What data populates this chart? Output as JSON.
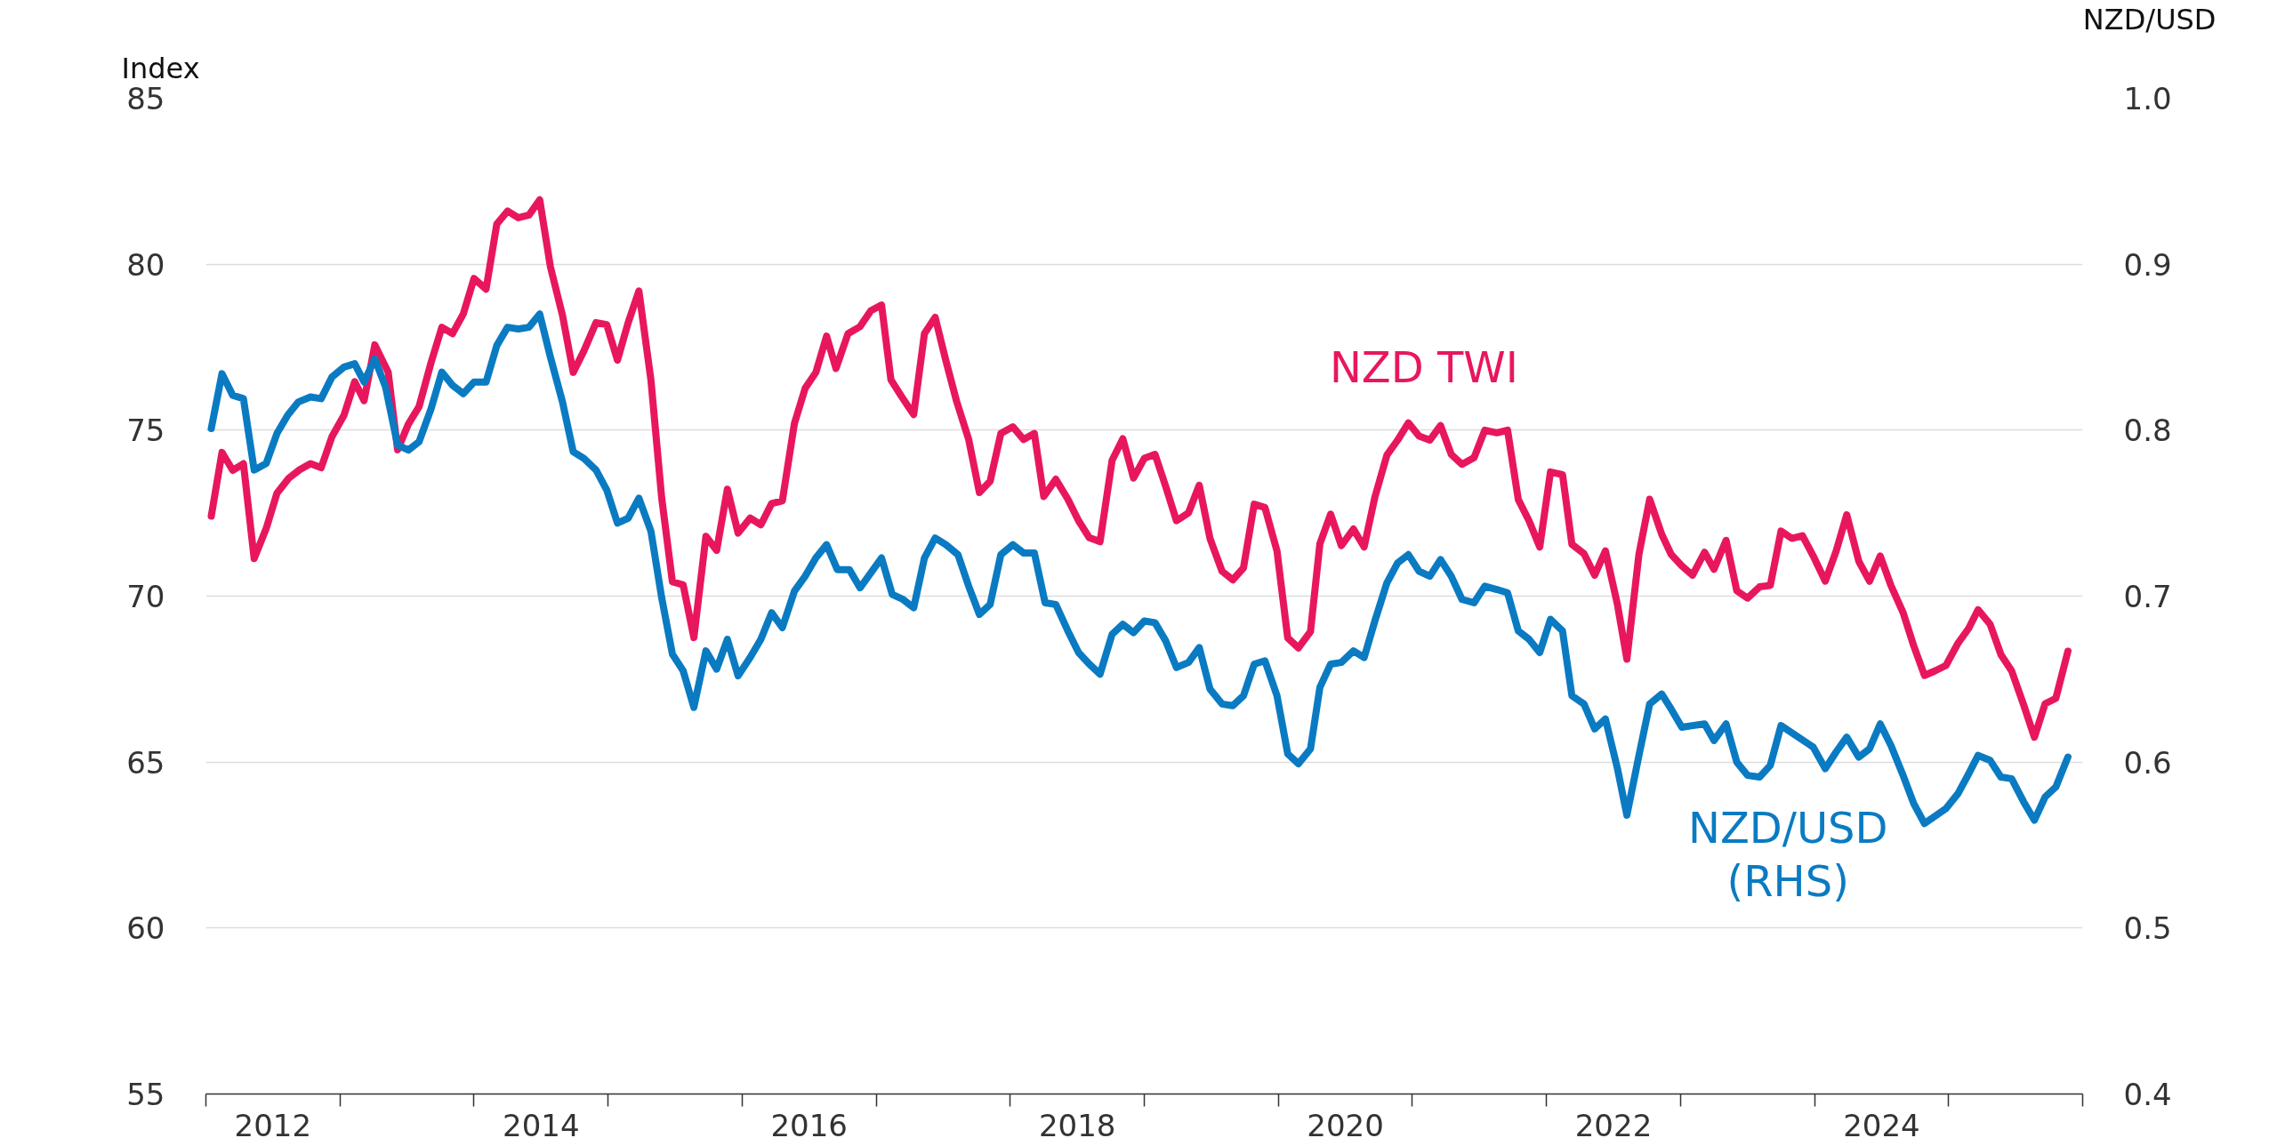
{
  "chart_data": {
    "type": "line",
    "ylabel": "Index",
    "y2label": "NZD/USD",
    "xlim": [
      2012,
      2026
    ],
    "ylim": [
      55,
      85
    ],
    "yticks": [
      55,
      60,
      65,
      70,
      75,
      80,
      85
    ],
    "y2lim": [
      0.4,
      1.0
    ],
    "y2ticks": [
      {
        "value": 0.4,
        "label": "0.4"
      },
      {
        "value": 0.5,
        "label": "0.5"
      },
      {
        "value": 0.6,
        "label": "0.6"
      },
      {
        "value": 0.7,
        "label": "0.7"
      },
      {
        "value": 0.8,
        "label": "0.8"
      },
      {
        "value": 0.9,
        "label": "0.9"
      },
      {
        "value": 1.0,
        "label": "1.0"
      }
    ],
    "xticks": [
      {
        "value": 2012,
        "label": null
      },
      {
        "value": 2013,
        "label": null
      },
      {
        "value": 2014,
        "label": null
      },
      {
        "value": 2015,
        "label": null
      },
      {
        "value": 2016,
        "label": null
      },
      {
        "value": 2017,
        "label": null
      },
      {
        "value": 2018,
        "label": null
      },
      {
        "value": 2019,
        "label": null
      },
      {
        "value": 2020,
        "label": null
      },
      {
        "value": 2021,
        "label": null
      },
      {
        "value": 2022,
        "label": null
      },
      {
        "value": 2023,
        "label": null
      },
      {
        "value": 2024,
        "label": null
      },
      {
        "value": 2025,
        "label": null
      },
      {
        "value": 2026,
        "label": null
      },
      {
        "value": 2012.5,
        "label": "2012"
      },
      {
        "value": 2014.5,
        "label": "2014"
      },
      {
        "value": 2016.5,
        "label": "2016"
      },
      {
        "value": 2018.5,
        "label": "2018"
      },
      {
        "value": 2020.5,
        "label": "2020"
      },
      {
        "value": 2022.5,
        "label": "2022"
      },
      {
        "value": 2024.5,
        "label": "2024"
      }
    ],
    "grid": "y",
    "marker": "none",
    "line_style": "solid",
    "series": [
      {
        "name": "NZD TWI",
        "color": "#e8175d",
        "x": [
          2012.04,
          2012.12,
          2012.2,
          2012.28,
          2012.36,
          2012.45,
          2012.53,
          2012.62,
          2012.7,
          2012.78,
          2012.86,
          2012.94,
          2013.03,
          2013.11,
          2013.18,
          2013.26,
          2013.36,
          2013.43,
          2013.51,
          2013.59,
          2013.68,
          2013.76,
          2013.84,
          2013.92,
          2014.0,
          2014.09,
          2014.17,
          2014.25,
          2014.33,
          2014.41,
          2014.49,
          2014.57,
          2014.66,
          2014.74,
          2014.82,
          2014.91,
          2014.99,
          2015.07,
          2015.15,
          2015.23,
          2015.32,
          2015.4,
          2015.48,
          2015.56,
          2015.64,
          2015.73,
          2015.81,
          2015.89,
          2015.97,
          2016.06,
          2016.14,
          2016.22,
          2016.3,
          2016.39,
          2016.47,
          2016.55,
          2016.63,
          2016.7,
          2016.79,
          2016.88,
          2016.96,
          2017.04,
          2017.11,
          2017.19,
          2017.28,
          2017.36,
          2017.44,
          2017.52,
          2017.6,
          2017.69,
          2017.77,
          2017.85,
          2017.93,
          2018.02,
          2018.1,
          2018.18,
          2018.25,
          2018.34,
          2018.43,
          2018.51,
          2018.59,
          2018.67,
          2018.76,
          2018.84,
          2018.92,
          2019.0,
          2019.08,
          2019.16,
          2019.24,
          2019.33,
          2019.41,
          2019.49,
          2019.58,
          2019.66,
          2019.74,
          2019.82,
          2019.9,
          2019.99,
          2020.07,
          2020.15,
          2020.24,
          2020.31,
          2020.39,
          2020.47,
          2020.56,
          2020.64,
          2020.72,
          2020.81,
          2020.89,
          2020.97,
          2021.05,
          2021.13,
          2021.21,
          2021.29,
          2021.37,
          2021.46,
          2021.54,
          2021.63,
          2021.71,
          2021.79,
          2021.87,
          2021.95,
          2022.03,
          2022.12,
          2022.19,
          2022.28,
          2022.36,
          2022.44,
          2022.53,
          2022.6,
          2022.69,
          2022.77,
          2022.86,
          2022.93,
          2023.01,
          2023.09,
          2023.18,
          2023.25,
          2023.34,
          2023.42,
          2023.5,
          2023.59,
          2023.67,
          2023.75,
          2023.83,
          2023.91,
          2023.99,
          2024.08,
          2024.16,
          2024.24,
          2024.33,
          2024.41,
          2024.49,
          2024.57,
          2024.66,
          2024.74,
          2024.82,
          2024.9,
          2024.98,
          2025.07,
          2025.15,
          2025.22,
          2025.31,
          2025.39,
          2025.47,
          2025.56,
          2025.64,
          2025.72,
          2025.8,
          2025.89
        ],
        "values": [
          72.41,
          74.33,
          73.79,
          73.99,
          71.13,
          72.04,
          73.1,
          73.56,
          73.81,
          73.99,
          73.87,
          74.8,
          75.45,
          76.46,
          75.89,
          77.57,
          76.74,
          74.41,
          75.18,
          75.71,
          77.04,
          78.1,
          77.91,
          78.5,
          79.57,
          79.25,
          81.21,
          81.6,
          81.4,
          81.48,
          81.94,
          79.92,
          78.46,
          76.74,
          77.39,
          78.24,
          78.18,
          77.11,
          78.24,
          79.19,
          76.5,
          72.96,
          70.43,
          70.34,
          68.75,
          71.8,
          71.38,
          73.22,
          71.9,
          72.35,
          72.15,
          72.79,
          72.87,
          75.2,
          76.26,
          76.74,
          77.83,
          76.86,
          77.91,
          78.12,
          78.6,
          78.77,
          76.52,
          76.01,
          75.47,
          77.91,
          78.4,
          77.09,
          75.87,
          74.72,
          73.12,
          73.46,
          74.9,
          75.1,
          74.72,
          74.9,
          73.0,
          73.52,
          72.92,
          72.27,
          71.76,
          71.64,
          74.09,
          74.74,
          73.56,
          74.15,
          74.27,
          73.3,
          72.27,
          72.51,
          73.34,
          71.74,
          70.75,
          70.49,
          70.85,
          72.77,
          72.67,
          71.36,
          68.74,
          68.44,
          68.93,
          71.58,
          72.47,
          71.52,
          72.02,
          71.48,
          72.98,
          74.25,
          74.7,
          75.22,
          74.82,
          74.7,
          75.14,
          74.27,
          73.97,
          74.17,
          75.0,
          74.92,
          75.0,
          72.91,
          72.27,
          71.48,
          73.74,
          73.66,
          71.56,
          71.28,
          70.63,
          71.36,
          69.74,
          68.1,
          71.26,
          72.92,
          71.86,
          71.26,
          70.91,
          70.63,
          71.32,
          70.81,
          71.68,
          70.16,
          69.94,
          70.28,
          70.32,
          71.96,
          71.74,
          71.82,
          71.21,
          70.45,
          71.34,
          72.45,
          71.05,
          70.45,
          71.21,
          70.32,
          69.51,
          68.5,
          67.61,
          67.75,
          67.91,
          68.58,
          69.03,
          69.59,
          69.15,
          68.24,
          67.75,
          66.72,
          65.75,
          66.76,
          66.92,
          68.34
        ]
      },
      {
        "name": "NZD/USD\n(RHS)",
        "color": "#0a7bc2",
        "axis": "y2",
        "x": [
          2012.04,
          2012.12,
          2012.2,
          2012.28,
          2012.36,
          2012.45,
          2012.53,
          2012.61,
          2012.69,
          2012.78,
          2012.86,
          2012.94,
          2013.03,
          2013.11,
          2013.18,
          2013.26,
          2013.34,
          2013.43,
          2013.51,
          2013.59,
          2013.68,
          2013.76,
          2013.84,
          2013.92,
          2014.0,
          2014.09,
          2014.17,
          2014.25,
          2014.33,
          2014.41,
          2014.49,
          2014.57,
          2014.66,
          2014.74,
          2014.82,
          2014.91,
          2014.99,
          2015.07,
          2015.15,
          2015.23,
          2015.32,
          2015.4,
          2015.48,
          2015.56,
          2015.64,
          2015.73,
          2015.81,
          2015.89,
          2015.97,
          2016.06,
          2016.14,
          2016.22,
          2016.3,
          2016.39,
          2016.47,
          2016.55,
          2016.63,
          2016.71,
          2016.8,
          2016.88,
          2016.96,
          2017.04,
          2017.12,
          2017.2,
          2017.28,
          2017.36,
          2017.44,
          2017.52,
          2017.61,
          2017.69,
          2017.77,
          2017.85,
          2017.93,
          2018.02,
          2018.1,
          2018.18,
          2018.26,
          2018.34,
          2018.43,
          2018.51,
          2018.59,
          2018.67,
          2018.76,
          2018.84,
          2018.92,
          2019.0,
          2019.08,
          2019.16,
          2019.24,
          2019.33,
          2019.41,
          2019.49,
          2019.58,
          2019.66,
          2019.74,
          2019.82,
          2019.9,
          2019.99,
          2020.07,
          2020.15,
          2020.24,
          2020.31,
          2020.39,
          2020.47,
          2020.56,
          2020.64,
          2020.72,
          2020.81,
          2020.89,
          2020.97,
          2021.05,
          2021.13,
          2021.21,
          2021.29,
          2021.37,
          2021.46,
          2021.54,
          2021.63,
          2021.71,
          2021.79,
          2021.87,
          2021.95,
          2022.03,
          2022.12,
          2022.19,
          2022.28,
          2022.36,
          2022.44,
          2022.53,
          2022.6,
          2022.69,
          2022.77,
          2022.86,
          2022.93,
          2023.01,
          2023.09,
          2023.18,
          2023.25,
          2023.34,
          2023.42,
          2023.5,
          2023.59,
          2023.67,
          2023.75,
          2023.99,
          2024.08,
          2024.16,
          2024.24,
          2024.33,
          2024.41,
          2024.49,
          2024.57,
          2024.66,
          2024.74,
          2024.82,
          2024.98,
          2025.07,
          2025.15,
          2025.22,
          2025.31,
          2025.39,
          2025.47,
          2025.56,
          2025.64,
          2025.72,
          2025.8,
          2025.89
        ],
        "values": [
          0.801,
          0.834,
          0.821,
          0.819,
          0.776,
          0.78,
          0.798,
          0.809,
          0.817,
          0.82,
          0.819,
          0.832,
          0.838,
          0.84,
          0.829,
          0.843,
          0.826,
          0.791,
          0.788,
          0.793,
          0.813,
          0.835,
          0.827,
          0.822,
          0.829,
          0.829,
          0.851,
          0.862,
          0.861,
          0.862,
          0.87,
          0.844,
          0.817,
          0.787,
          0.783,
          0.776,
          0.764,
          0.744,
          0.747,
          0.759,
          0.739,
          0.699,
          0.665,
          0.655,
          0.633,
          0.667,
          0.656,
          0.674,
          0.652,
          0.663,
          0.674,
          0.69,
          0.681,
          0.703,
          0.712,
          0.723,
          0.731,
          0.716,
          0.716,
          0.705,
          0.714,
          0.723,
          0.701,
          0.698,
          0.693,
          0.723,
          0.735,
          0.731,
          0.725,
          0.706,
          0.689,
          0.695,
          0.725,
          0.731,
          0.726,
          0.726,
          0.696,
          0.695,
          0.679,
          0.666,
          0.659,
          0.653,
          0.677,
          0.683,
          0.678,
          0.685,
          0.684,
          0.673,
          0.657,
          0.66,
          0.669,
          0.644,
          0.635,
          0.634,
          0.64,
          0.659,
          0.661,
          0.64,
          0.605,
          0.599,
          0.608,
          0.645,
          0.659,
          0.66,
          0.667,
          0.663,
          0.685,
          0.708,
          0.72,
          0.725,
          0.715,
          0.712,
          0.722,
          0.712,
          0.698,
          0.696,
          0.706,
          0.704,
          0.702,
          0.679,
          0.674,
          0.666,
          0.686,
          0.679,
          0.64,
          0.635,
          0.62,
          0.626,
          0.596,
          0.568,
          0.604,
          0.635,
          0.641,
          0.632,
          0.621,
          0.622,
          0.623,
          0.613,
          0.623,
          0.6,
          0.592,
          0.591,
          0.598,
          0.622,
          0.609,
          0.596,
          0.606,
          0.615,
          0.603,
          0.608,
          0.623,
          0.61,
          0.592,
          0.575,
          0.563,
          0.572,
          0.581,
          0.593,
          0.604,
          0.601,
          0.591,
          0.59,
          0.576,
          0.565,
          0.579,
          0.585,
          0.603
        ]
      }
    ]
  }
}
